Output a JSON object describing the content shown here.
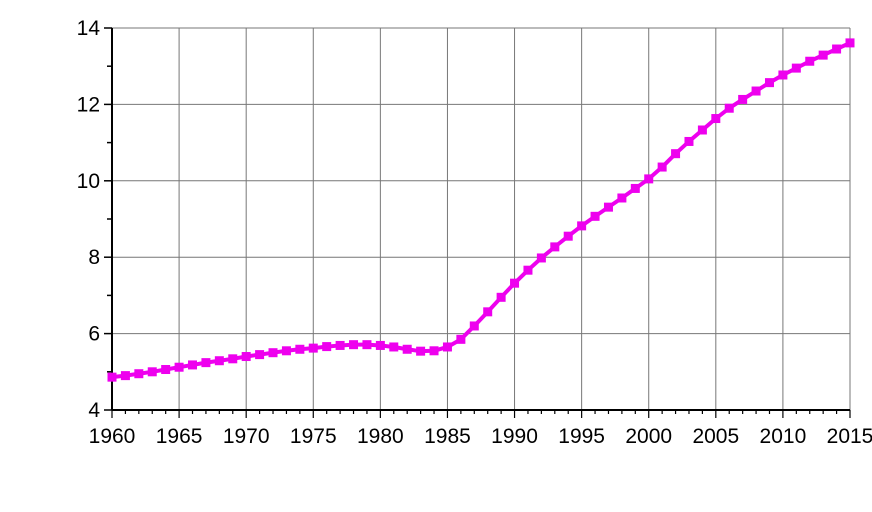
{
  "chart_data": {
    "type": "line",
    "title": "",
    "xlabel": "",
    "ylabel": "",
    "xlim": [
      1960,
      2015
    ],
    "ylim": [
      4,
      14
    ],
    "xticks": [
      1960,
      1965,
      1970,
      1975,
      1980,
      1985,
      1990,
      1995,
      2000,
      2005,
      2010,
      2015
    ],
    "xtick_labels": [
      "1960",
      "1965",
      "1970",
      "1975",
      "1980",
      "1985",
      "1990",
      "1995",
      "2000",
      "2005",
      "2010",
      "2015"
    ],
    "yticks": [
      4,
      6,
      8,
      10,
      12,
      14
    ],
    "ytick_labels": [
      "4",
      "6",
      "8",
      "10",
      "12",
      "14"
    ],
    "grid": true,
    "marker": "square",
    "series": [
      {
        "color": "#ee00ee",
        "x": [
          1960,
          1961,
          1962,
          1963,
          1964,
          1965,
          1966,
          1967,
          1968,
          1969,
          1970,
          1971,
          1972,
          1973,
          1974,
          1975,
          1976,
          1977,
          1978,
          1979,
          1980,
          1981,
          1982,
          1983,
          1984,
          1985,
          1986,
          1987,
          1988,
          1989,
          1990,
          1991,
          1992,
          1993,
          1994,
          1995,
          1996,
          1997,
          1998,
          1999,
          2000,
          2001,
          2002,
          2003,
          2004,
          2005,
          2006,
          2007,
          2008,
          2009,
          2010,
          2011,
          2012,
          2013,
          2014,
          2015
        ],
        "values": [
          4.86,
          4.9,
          4.95,
          5.0,
          5.06,
          5.12,
          5.18,
          5.24,
          5.29,
          5.34,
          5.4,
          5.45,
          5.5,
          5.55,
          5.59,
          5.62,
          5.66,
          5.69,
          5.71,
          5.71,
          5.69,
          5.65,
          5.59,
          5.54,
          5.55,
          5.65,
          5.85,
          6.2,
          6.57,
          6.95,
          7.32,
          7.66,
          7.98,
          8.27,
          8.55,
          8.82,
          9.07,
          9.31,
          9.55,
          9.8,
          10.05,
          10.36,
          10.71,
          11.03,
          11.33,
          11.63,
          11.9,
          12.13,
          12.35,
          12.57,
          12.77,
          12.95,
          13.13,
          13.29,
          13.45,
          13.61
        ]
      }
    ]
  }
}
